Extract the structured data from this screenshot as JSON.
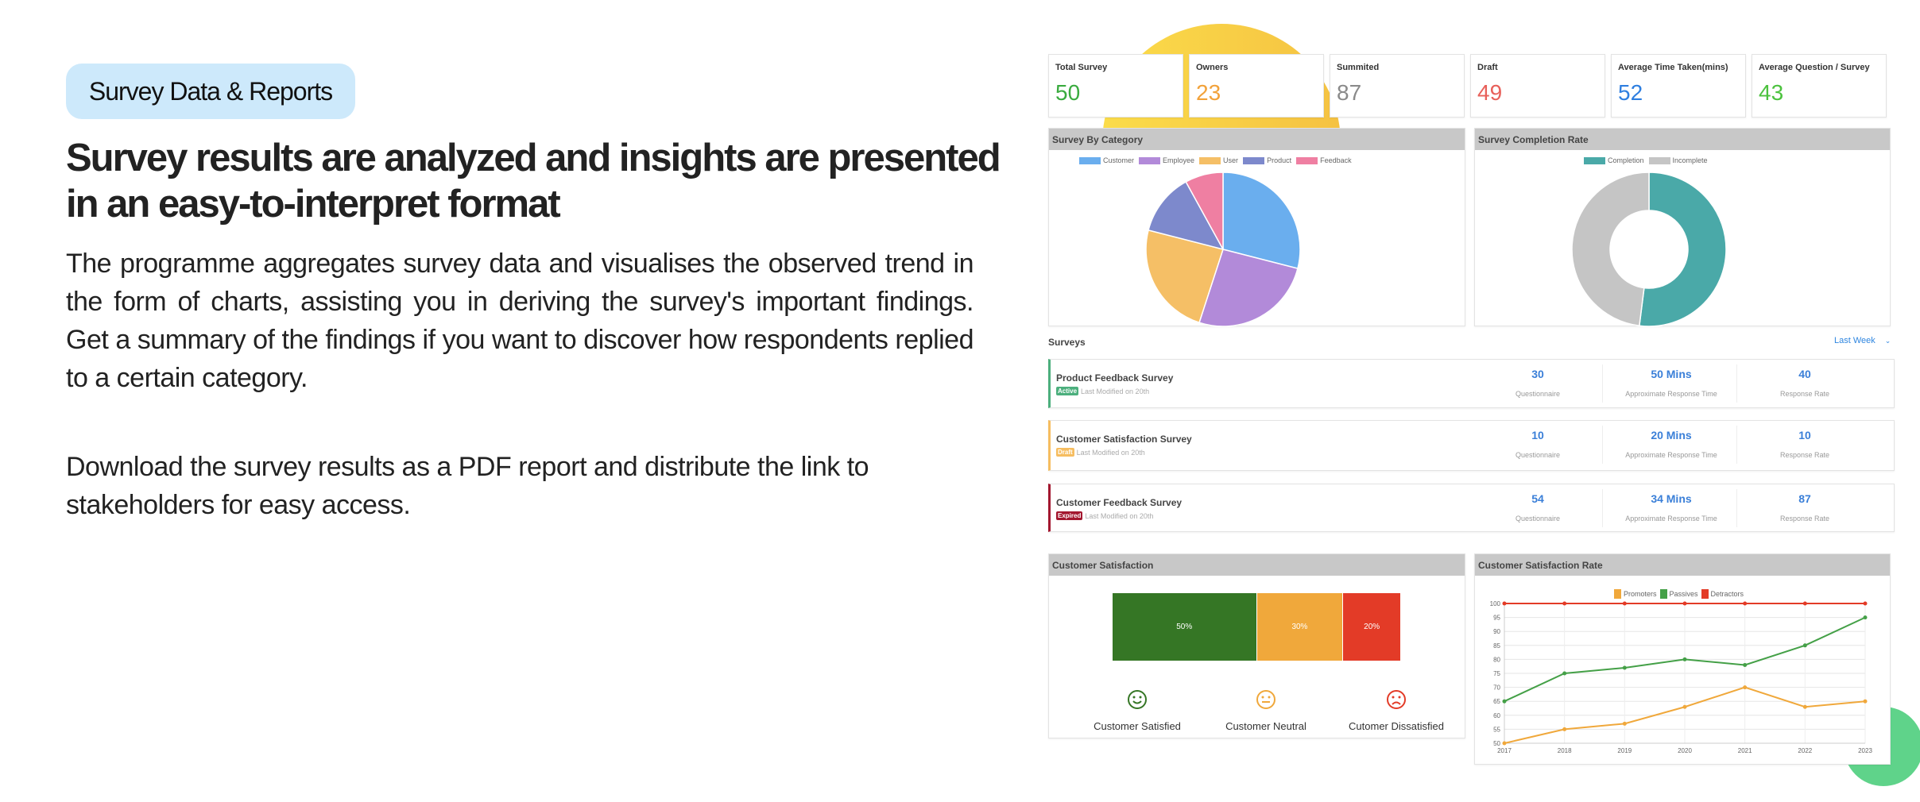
{
  "intro": {
    "badge": "Survey Data & Reports",
    "heading": "Survey results are analyzed and insights are presented in an easy-to-interpret format",
    "paragraph1": "The programme aggregates survey data and visualises the observed trend in the form of charts, assisting you in deriving the survey's important findings. Get a summary of the findings if you want to discover how respondents replied to a certain category.",
    "paragraph2": "Download the survey results as a PDF report and distribute the link to stakeholders for easy access."
  },
  "stats": [
    {
      "label": "Total Survey",
      "value": "50",
      "color": "#3aab3f"
    },
    {
      "label": "Owners",
      "value": "23",
      "color": "#f2a23a"
    },
    {
      "label": "Summited",
      "value": "87",
      "color": "#8a8a8a"
    },
    {
      "label": "Draft",
      "value": "49",
      "color": "#e8605a"
    },
    {
      "label": "Average Time Taken(mins)",
      "value": "52",
      "color": "#2f7fe0"
    },
    {
      "label": "Average Question / Survey",
      "value": "43",
      "color": "#4cc23e"
    }
  ],
  "surveys_section": {
    "title": "Surveys",
    "filter": "Last Week",
    "filter_icon": "chevron-down-icon"
  },
  "surveys": [
    {
      "name": "Product Feedback Survey",
      "status": "Active",
      "status_color": "#4caf7d",
      "modified": "Last Modified on 20th",
      "questionnaire": "30",
      "response_time": "50 Mins",
      "response_rate": "40"
    },
    {
      "name": "Customer Satisfaction Survey",
      "status": "Draft",
      "status_color": "#f6bd60",
      "modified": "Last Modified on 20th",
      "questionnaire": "10",
      "response_time": "20 Mins",
      "response_rate": "10"
    },
    {
      "name": "Customer Feedback Survey",
      "status": "Expired",
      "status_color": "#a3172f",
      "modified": "Last Modified on 20th",
      "questionnaire": "54",
      "response_time": "34 Mins",
      "response_rate": "87"
    }
  ],
  "survey_col_labels": {
    "questionnaire": "Questionnaire",
    "response_time": "Approximate Response Time",
    "response_rate": "Response Rate"
  },
  "satisfaction": {
    "title": "Customer Satisfaction",
    "segments": [
      {
        "label": "50%",
        "value": 50,
        "color": "#357625"
      },
      {
        "label": "30%",
        "value": 30,
        "color": "#f0a83b"
      },
      {
        "label": "20%",
        "value": 20,
        "color": "#e33b27"
      }
    ],
    "faces": [
      {
        "label": "Customer Satisfied",
        "icon": "smile-icon",
        "glyph": "☺",
        "color": "#357625"
      },
      {
        "label": "Customer Neutral",
        "icon": "neutral-face-icon",
        "glyph": "😐",
        "color": "#f0a83b"
      },
      {
        "label": "Cutomer Dissatisfied",
        "icon": "frown-icon",
        "glyph": "☹",
        "color": "#e33b27"
      }
    ]
  },
  "chart_data": [
    {
      "type": "pie",
      "title": "Survey By Category",
      "categories": [
        "Customer",
        "Employee",
        "User",
        "Product",
        "Feedback"
      ],
      "values": [
        29,
        26,
        24,
        13,
        8
      ],
      "colors": [
        "#6aaeee",
        "#b28ad9",
        "#f5bf66",
        "#7d89cc",
        "#ef7fa2"
      ],
      "legend": "top"
    },
    {
      "type": "pie",
      "title": "Survey Completion Rate",
      "categories": [
        "Completion",
        "Incomplete"
      ],
      "values": [
        52,
        48
      ],
      "colors": [
        "#4aa9a8",
        "#c5c5c5"
      ],
      "legend": "top",
      "donut": true
    },
    {
      "type": "line",
      "title": "Customer Satisfaction Rate",
      "x": [
        "2017",
        "2018",
        "2019",
        "2020",
        "2021",
        "2022",
        "2023"
      ],
      "series": [
        {
          "name": "Promoters",
          "color": "#f0a83b",
          "values": [
            50,
            55,
            57,
            63,
            70,
            63,
            65
          ]
        },
        {
          "name": "Passives",
          "color": "#44a047",
          "values": [
            65,
            75,
            77,
            80,
            78,
            85,
            95
          ]
        },
        {
          "name": "Detractors",
          "color": "#e33b27",
          "values": [
            100,
            100,
            100,
            100,
            100,
            100,
            100
          ]
        }
      ],
      "ylim": [
        50,
        100
      ],
      "yticks": [
        "50",
        "55",
        "60",
        "65",
        "70",
        "75",
        "80",
        "85",
        "90",
        "95",
        "100"
      ],
      "grid": true,
      "legend": "top"
    }
  ]
}
